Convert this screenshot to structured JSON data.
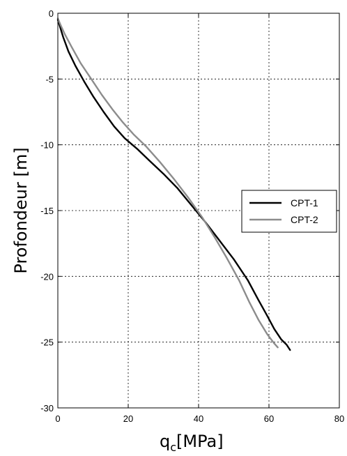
{
  "chart_data": {
    "type": "line",
    "xlabel_main": "q",
    "xlabel_sub": "c",
    "xlabel_unit": "[MPa]",
    "ylabel": "Profondeur [m]",
    "xlim": [
      0,
      80
    ],
    "ylim": [
      -30,
      0
    ],
    "x_ticks": [
      "0",
      "20",
      "40",
      "60",
      "80"
    ],
    "y_ticks": [
      "0",
      "-5",
      "-10",
      "-15",
      "-20",
      "-25",
      "-30"
    ],
    "grid": true,
    "legend_position": "right",
    "series": [
      {
        "name": "CPT-1",
        "color": "#000000",
        "points": [
          [
            0.0,
            -0.5
          ],
          [
            0.6,
            -1.0
          ],
          [
            1.5,
            -1.8
          ],
          [
            3.0,
            -2.9
          ],
          [
            5.0,
            -4.0
          ],
          [
            7.5,
            -5.2
          ],
          [
            10.0,
            -6.3
          ],
          [
            13.0,
            -7.5
          ],
          [
            16.0,
            -8.6
          ],
          [
            19.0,
            -9.5
          ],
          [
            22.5,
            -10.3
          ],
          [
            26.0,
            -11.2
          ],
          [
            30.0,
            -12.2
          ],
          [
            34.0,
            -13.3
          ],
          [
            38.0,
            -14.6
          ],
          [
            42.0,
            -15.9
          ],
          [
            46.0,
            -17.3
          ],
          [
            50.0,
            -18.7
          ],
          [
            54.0,
            -20.3
          ],
          [
            57.0,
            -21.8
          ],
          [
            59.5,
            -23.0
          ],
          [
            61.5,
            -24.0
          ],
          [
            63.5,
            -24.8
          ],
          [
            65.0,
            -25.2
          ],
          [
            66.0,
            -25.6
          ]
        ]
      },
      {
        "name": "CPT-2",
        "color": "#8c8c8c",
        "points": [
          [
            0.0,
            -0.4
          ],
          [
            0.8,
            -0.9
          ],
          [
            2.0,
            -1.6
          ],
          [
            4.0,
            -2.6
          ],
          [
            6.5,
            -3.8
          ],
          [
            9.5,
            -5.0
          ],
          [
            12.5,
            -6.2
          ],
          [
            15.5,
            -7.3
          ],
          [
            18.5,
            -8.3
          ],
          [
            21.5,
            -9.2
          ],
          [
            25.0,
            -10.1
          ],
          [
            29.0,
            -11.3
          ],
          [
            33.0,
            -12.6
          ],
          [
            37.0,
            -14.0
          ],
          [
            41.0,
            -15.5
          ],
          [
            44.5,
            -17.0
          ],
          [
            48.0,
            -18.6
          ],
          [
            51.5,
            -20.3
          ],
          [
            54.5,
            -22.0
          ],
          [
            57.0,
            -23.3
          ],
          [
            59.5,
            -24.4
          ],
          [
            61.5,
            -25.1
          ],
          [
            62.5,
            -25.4
          ]
        ]
      }
    ]
  }
}
